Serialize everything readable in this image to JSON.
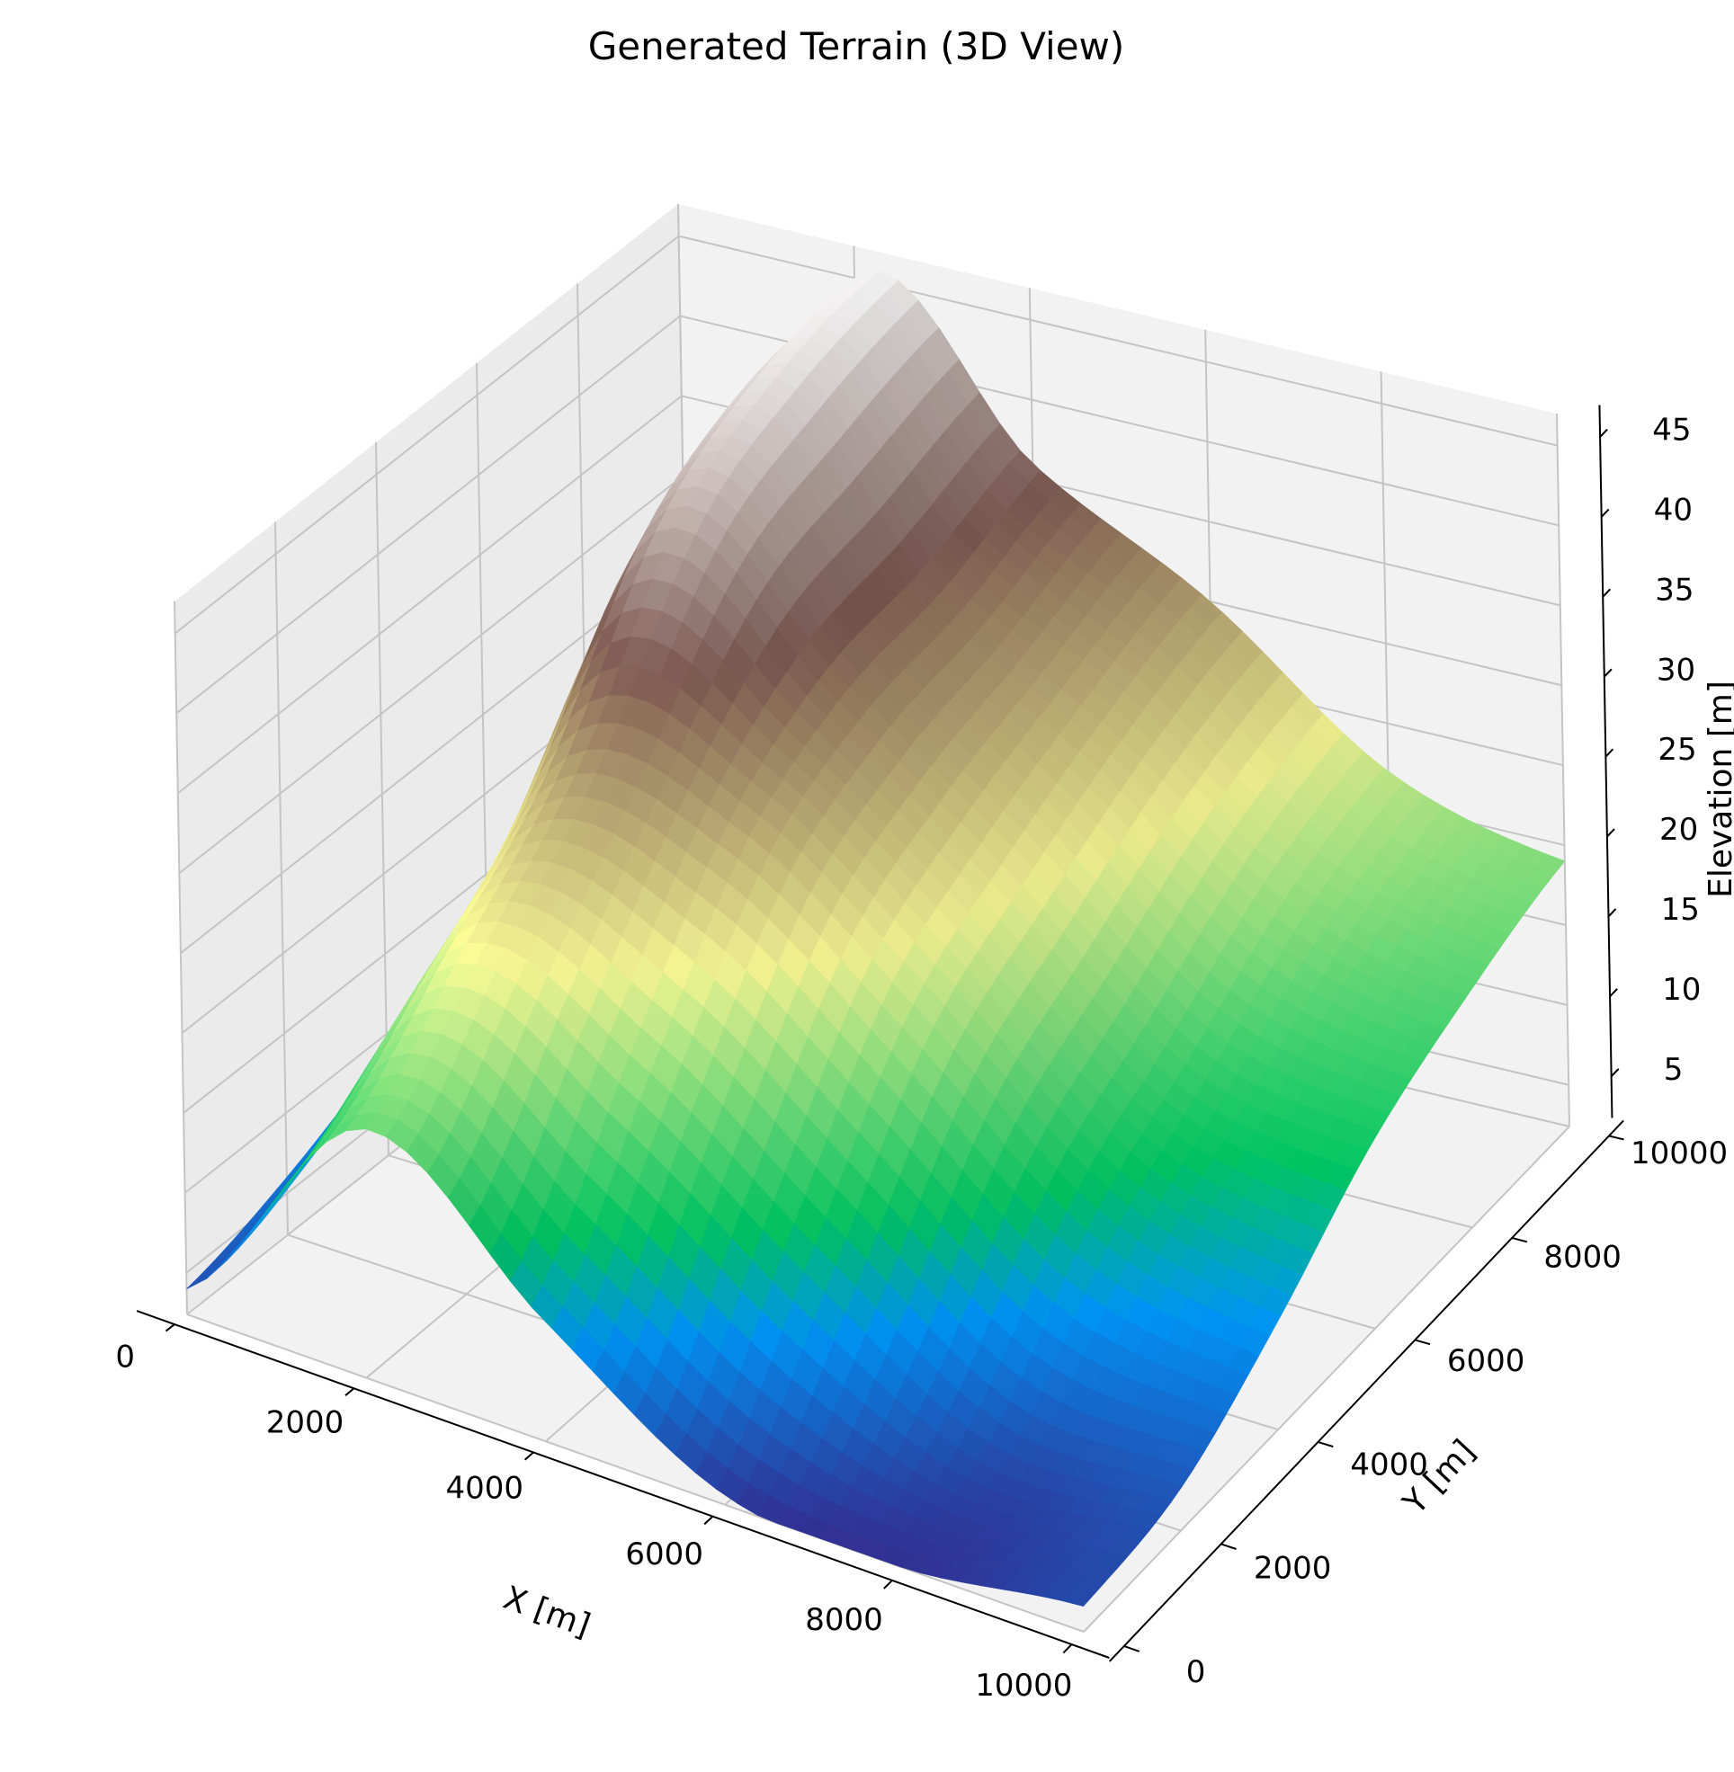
{
  "chart_data": {
    "type": "surface3d",
    "title": "Generated Terrain (3D View)",
    "xlabel": "X [m]",
    "ylabel": "Y [m]",
    "zlabel": "Elevation [m]",
    "colormap": "terrain",
    "grid": true,
    "xlim": [
      0,
      10000
    ],
    "ylim": [
      0,
      10000
    ],
    "zlim": [
      2.4,
      47
    ],
    "xticks": [
      0,
      2000,
      4000,
      6000,
      8000,
      10000
    ],
    "xtick_labels": [
      "0",
      "2000",
      "4000",
      "6000",
      "8000",
      "10000"
    ],
    "yticks": [
      0,
      2000,
      4000,
      6000,
      8000,
      10000
    ],
    "ytick_labels": [
      "0",
      "2000",
      "4000",
      "6000",
      "8000",
      "10000"
    ],
    "zticks": [
      5,
      10,
      15,
      20,
      25,
      30,
      35,
      40,
      45
    ],
    "ztick_labels": [
      "5",
      "10",
      "15",
      "20",
      "25",
      "30",
      "35",
      "40",
      "45"
    ],
    "grid_x": [
      0,
      2000,
      4000,
      6000,
      8000,
      10000
    ],
    "grid_y": [
      0,
      2000,
      4000,
      6000,
      8000,
      10000
    ],
    "elevation": [
      [
        4,
        18,
        10,
        3,
        2.4,
        4
      ],
      [
        6,
        24,
        20,
        12,
        5,
        5
      ],
      [
        9,
        30,
        29,
        21,
        12,
        9
      ],
      [
        12,
        40,
        33,
        25,
        16,
        14
      ],
      [
        15,
        44,
        34,
        28,
        20,
        17
      ],
      [
        14,
        45,
        36,
        30,
        22,
        19
      ]
    ],
    "elevation_note": "rows indexed by grid_y, columns indexed by grid_x"
  }
}
